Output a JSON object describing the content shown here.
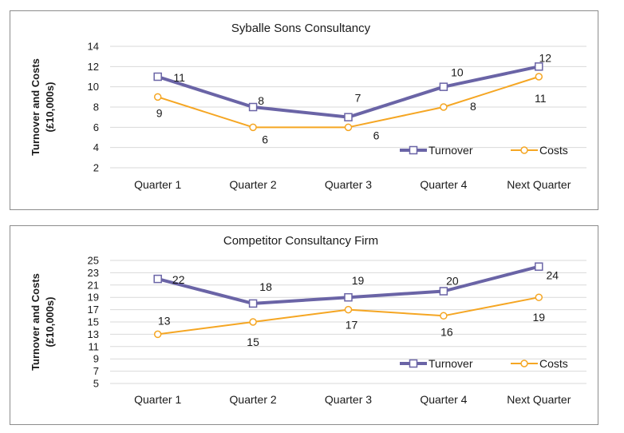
{
  "colors": {
    "turnover": "#6A64A6",
    "costs": "#F5A623",
    "grid": "#d9d9d9",
    "border": "#8c8c8c"
  },
  "chart_data": [
    {
      "type": "line",
      "title": "Syballe Sons Consultancy",
      "ylabel_lines": [
        "Turnover and Costs",
        "(£10,000s)"
      ],
      "xlabel": "",
      "categories": [
        "Quarter 1",
        "Quarter 2",
        "Quarter 3",
        "Quarter 4",
        "Next Quarter"
      ],
      "ylim": [
        2,
        14
      ],
      "yticks": [
        2,
        4,
        6,
        8,
        10,
        12,
        14
      ],
      "grid": true,
      "legend_position": "bottom-right",
      "series": [
        {
          "name": "Turnover",
          "marker": "square",
          "values": [
            11,
            8,
            7,
            10,
            12
          ],
          "labels": [
            "11",
            "8",
            "7",
            "10",
            "12"
          ]
        },
        {
          "name": "Costs",
          "marker": "circle",
          "values": [
            9,
            6,
            6,
            8,
            11
          ],
          "labels": [
            "9",
            "6",
            "6",
            "8",
            "11"
          ]
        }
      ]
    },
    {
      "type": "line",
      "title": "Competitor  Consultancy Firm",
      "ylabel_lines": [
        "Turnover and Costs",
        "(£10,000s)"
      ],
      "xlabel": "",
      "categories": [
        "Quarter 1",
        "Quarter 2",
        "Quarter 3",
        "Quarter 4",
        "Next Quarter"
      ],
      "ylim": [
        5,
        25
      ],
      "yticks": [
        5,
        7,
        9,
        11,
        13,
        15,
        17,
        19,
        21,
        23,
        25
      ],
      "grid": true,
      "legend_position": "bottom-right",
      "series": [
        {
          "name": "Turnover",
          "marker": "square",
          "values": [
            22,
            18,
            19,
            20,
            24
          ],
          "labels": [
            "22",
            "18",
            "19",
            "20",
            "24"
          ]
        },
        {
          "name": "Costs",
          "marker": "circle",
          "values": [
            13,
            15,
            17,
            16,
            19
          ],
          "labels": [
            "13",
            "15",
            "17",
            "16",
            "19"
          ]
        }
      ]
    }
  ]
}
